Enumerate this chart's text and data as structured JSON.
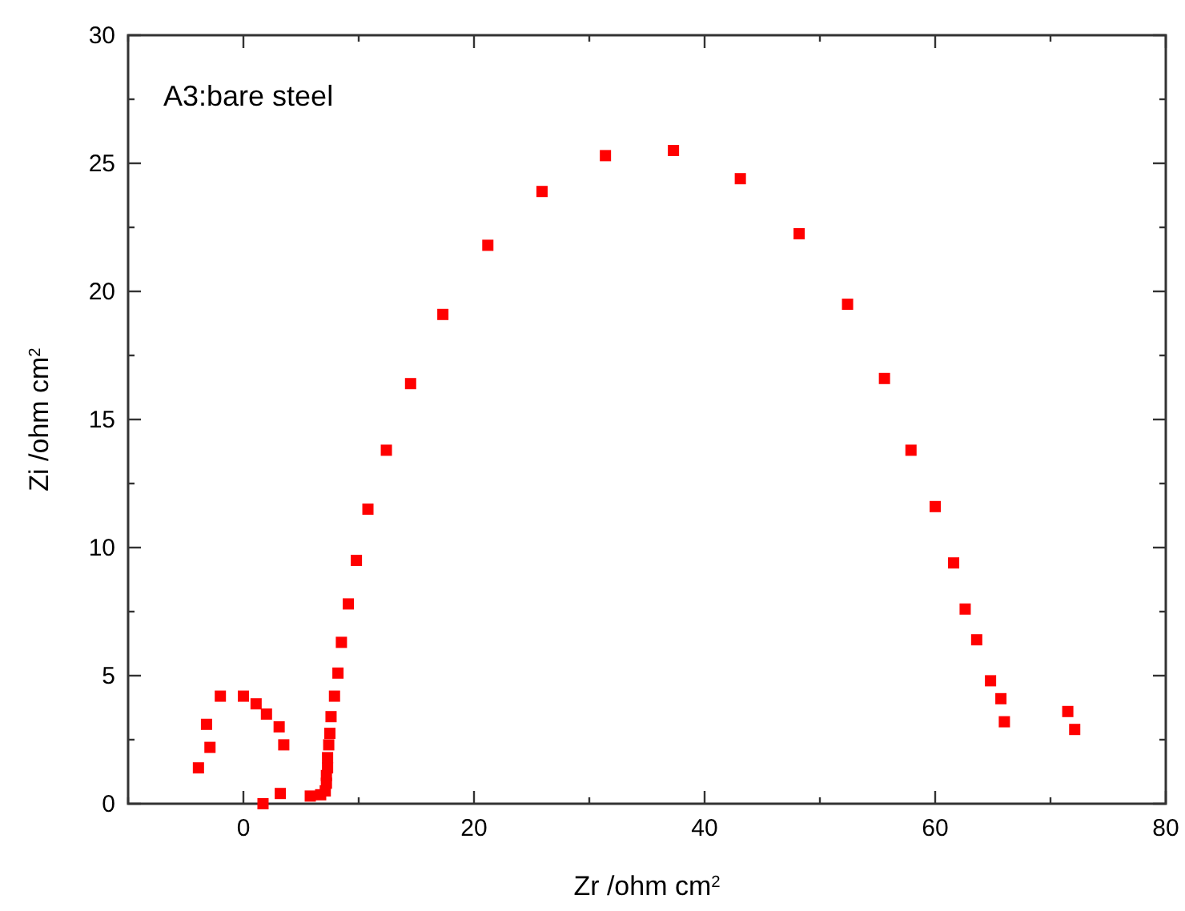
{
  "chart_data": {
    "type": "scatter",
    "xlabel": "Zr /ohm cm$^{2}$",
    "ylabel": "Zi /ohm cm$^{2}$",
    "annotations": [
      "A3:bare steel"
    ],
    "xlim": [
      -10,
      80
    ],
    "ylim": [
      0,
      30
    ],
    "xticks": [
      {
        "value": -10,
        "label": null
      },
      0,
      {
        "value": 10,
        "label": null
      },
      20,
      {
        "value": 30,
        "label": null
      },
      40,
      {
        "value": 50,
        "label": null
      },
      60,
      {
        "value": 70,
        "label": null
      },
      80
    ],
    "yticks": [
      0,
      {
        "value": 2.5,
        "label": null
      },
      5,
      {
        "value": 7.5,
        "label": null
      },
      10,
      {
        "value": 12.5,
        "label": null
      },
      15,
      {
        "value": 17.5,
        "label": null
      },
      20,
      {
        "value": 22.5,
        "label": null
      },
      25,
      {
        "value": 27.5,
        "label": null
      },
      30
    ],
    "grid": false,
    "marker": "square",
    "series": [
      {
        "color": "#ff0000",
        "x": [
          -3.9,
          -3.2,
          -2.9,
          -2.0,
          0.0,
          1.1,
          2.0,
          3.1,
          3.5,
          3.2,
          1.7,
          5.8,
          6.7,
          7.1,
          7.2,
          7.2,
          7.3,
          7.3,
          7.4,
          7.5,
          7.6,
          7.9,
          8.2,
          8.5,
          9.1,
          9.8,
          10.8,
          12.4,
          14.5,
          17.3,
          21.2,
          25.9,
          31.4,
          37.3,
          43.1,
          48.2,
          52.4,
          55.6,
          57.9,
          60.0,
          61.6,
          62.6,
          63.6,
          64.8,
          65.7,
          66.0,
          71.5,
          72.1
        ],
        "values": [
          1.4,
          3.1,
          2.2,
          4.2,
          4.2,
          3.9,
          3.5,
          3.0,
          2.3,
          0.4,
          0.0,
          0.3,
          0.35,
          0.5,
          0.8,
          1.1,
          1.4,
          1.8,
          2.3,
          2.75,
          3.4,
          4.2,
          5.1,
          6.3,
          7.8,
          9.5,
          11.5,
          13.8,
          16.4,
          19.1,
          21.8,
          23.9,
          25.3,
          25.5,
          24.4,
          22.25,
          19.5,
          16.6,
          13.8,
          11.6,
          9.4,
          7.6,
          6.4,
          4.8,
          4.1,
          3.2,
          3.6,
          2.9
        ]
      }
    ]
  }
}
